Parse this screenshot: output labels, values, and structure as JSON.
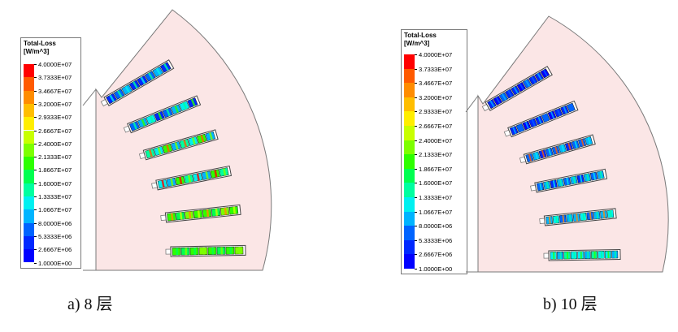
{
  "legend_colors": [
    "#ff0000",
    "#ff5a00",
    "#ff8c00",
    "#ffbe00",
    "#ffee00",
    "#c8ff00",
    "#7dff00",
    "#2dff00",
    "#00ff50",
    "#00ffa0",
    "#00f0f0",
    "#00b4ff",
    "#0064ff",
    "#0028ff",
    "#0000ff"
  ],
  "panel_a": {
    "legend": {
      "title": "Total-Loss",
      "unit": "[W/m^3]",
      "ticks": [
        "4.0000E+07",
        "3.7333E+07",
        "3.4667E+07",
        "3.2000E+07",
        "2.9333E+07",
        "2.6667E+07",
        "2.4000E+07",
        "2.1333E+07",
        "1.8667E+07",
        "1.6000E+07",
        "1.3333E+07",
        "1.0667E+07",
        "8.0000E+06",
        "5.3333E+06",
        "2.6667E+06",
        "1.0000E+00"
      ]
    },
    "caption": "a) 8 层",
    "layers": 8
  },
  "panel_b": {
    "legend": {
      "title": "Total-Loss",
      "unit": "[W/m^3]",
      "ticks": [
        "4.0000E+07",
        "3.7333E+07",
        "3.4667E+07",
        "3.2000E+07",
        "2.9333E+07",
        "2.6667E+07",
        "2.4000E+07",
        "2.1333E+07",
        "1.8667E+07",
        "1.6000E+07",
        "1.3333E+07",
        "1.0667E+07",
        "8.0000E+06",
        "5.3333E+06",
        "2.6667E+06",
        "1.0000E+00"
      ]
    },
    "caption": "b) 10 层",
    "layers": 10
  },
  "colors": {
    "stator_fill": "#fbe6e6",
    "stator_stroke": "#7a7a7a"
  }
}
